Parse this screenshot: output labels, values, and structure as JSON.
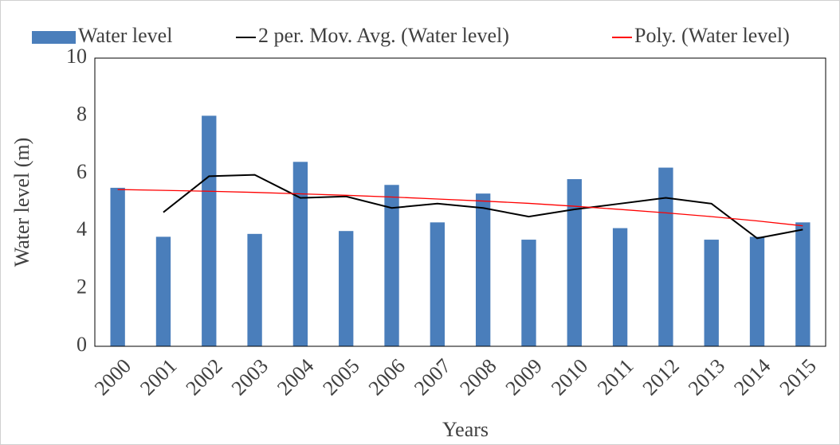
{
  "chart_data": {
    "type": "bar",
    "x_label": "Years",
    "y_label": "Water level (m)",
    "categories": [
      "2000",
      "2001",
      "2002",
      "2003",
      "2004",
      "2005",
      "2006",
      "2007",
      "2008",
      "2009",
      "2010",
      "2011",
      "2012",
      "2013",
      "2014",
      "2015"
    ],
    "series": [
      {
        "name": "Water level",
        "type": "bar",
        "color": "#4a7ebb",
        "values": [
          5.5,
          3.8,
          8.0,
          3.9,
          6.4,
          4.0,
          5.6,
          4.3,
          5.3,
          3.7,
          5.8,
          4.1,
          6.2,
          3.7,
          3.8,
          4.3
        ]
      },
      {
        "name": "2 per. Mov. Avg. (Water level)",
        "type": "line",
        "color": "#000000",
        "values": [
          null,
          4.65,
          5.9,
          5.95,
          5.15,
          5.2,
          4.8,
          4.95,
          4.8,
          4.5,
          4.75,
          4.95,
          5.15,
          4.95,
          3.75,
          4.05
        ]
      },
      {
        "name": "Poly. (Water level)",
        "type": "line",
        "color": "#ff0000",
        "values": [
          5.44,
          5.41,
          5.38,
          5.34,
          5.29,
          5.24,
          5.18,
          5.11,
          5.04,
          4.96,
          4.86,
          4.75,
          4.63,
          4.5,
          4.35,
          4.18
        ]
      }
    ],
    "ylim": [
      0,
      10
    ],
    "yticks": [
      0,
      2,
      4,
      6,
      8,
      10
    ],
    "grid": false,
    "legend": "top"
  }
}
